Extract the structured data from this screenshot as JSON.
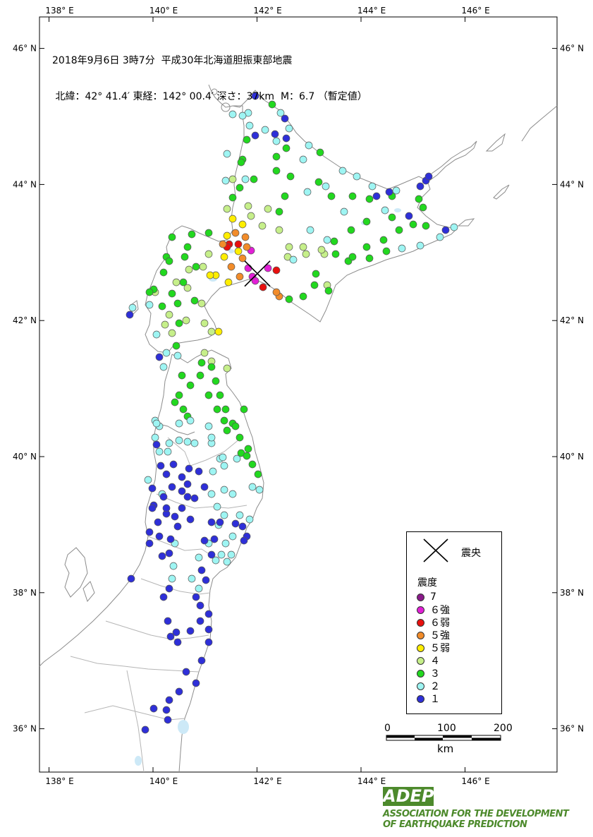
{
  "title": {
    "line1": "2018年9月6日 3時7分  平成30年北海道胆振東部地震",
    "line2": " 北緯：42° 41.4′ 東経：142° 00.4′ 深さ：37km  M：6.7 （暫定値）"
  },
  "axes": {
    "lon_labels": [
      "138° E",
      "140° E",
      "142° E",
      "144° E",
      "146° E"
    ],
    "lat_labels": [
      "46° N",
      "44° N",
      "42° N",
      "40° N",
      "38° N",
      "36° N"
    ]
  },
  "epicenter": {
    "lat": 42.69,
    "lon": 142.007,
    "label": "震央"
  },
  "legend": {
    "title": "震度",
    "items": [
      {
        "label": "7",
        "color": "#8a1a8a"
      },
      {
        "label": "６強",
        "color": "#e21fd6"
      },
      {
        "label": "６弱",
        "color": "#e8100e"
      },
      {
        "label": "５強",
        "color": "#f28c2a"
      },
      {
        "label": "５弱",
        "color": "#ffee00"
      },
      {
        "label": "４",
        "color": "#c6ef8a"
      },
      {
        "label": "３",
        "color": "#22d81f"
      },
      {
        "label": "２",
        "color": "#9ef5f3"
      },
      {
        "label": "１",
        "color": "#2e2fd8"
      }
    ]
  },
  "scale": {
    "labels": [
      "0",
      "100",
      "200"
    ],
    "unit": "km"
  },
  "logo": {
    "mark": "ADEP",
    "line1": "ASSOCIATION  FOR THE DEVELOPMENT",
    "line2": "OF EARTHQUAKE PREDICTION"
  }
}
